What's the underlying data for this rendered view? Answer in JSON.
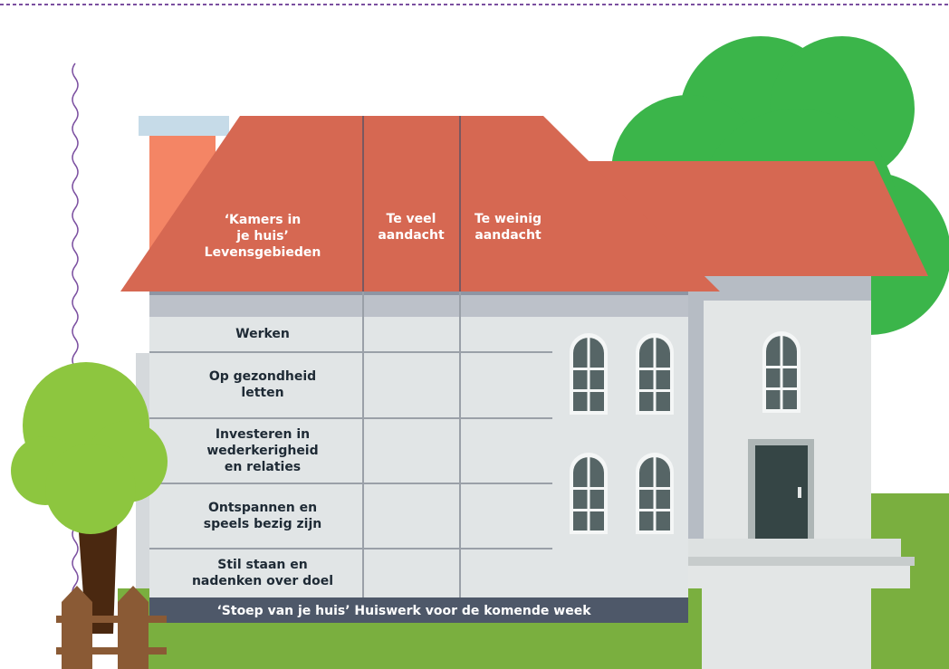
{
  "header": {
    "columns": [
      [
        "‘Kamers in",
        "je huis’",
        "Levensgebieden"
      ],
      [
        "Te veel",
        "aandacht"
      ],
      [
        "Te weinig",
        "aandacht"
      ]
    ]
  },
  "rows": [
    [
      "Werken"
    ],
    [
      "Op gezondheid",
      "letten"
    ],
    [
      "Investeren in",
      "wederkerigheid",
      "en relaties"
    ],
    [
      "Ontspannen en",
      "speels bezig zijn"
    ],
    [
      "Stil staan en",
      "nadenken over doel"
    ]
  ],
  "footer": "‘Stoep van je huis’ Huiswerk voor de komende week"
}
